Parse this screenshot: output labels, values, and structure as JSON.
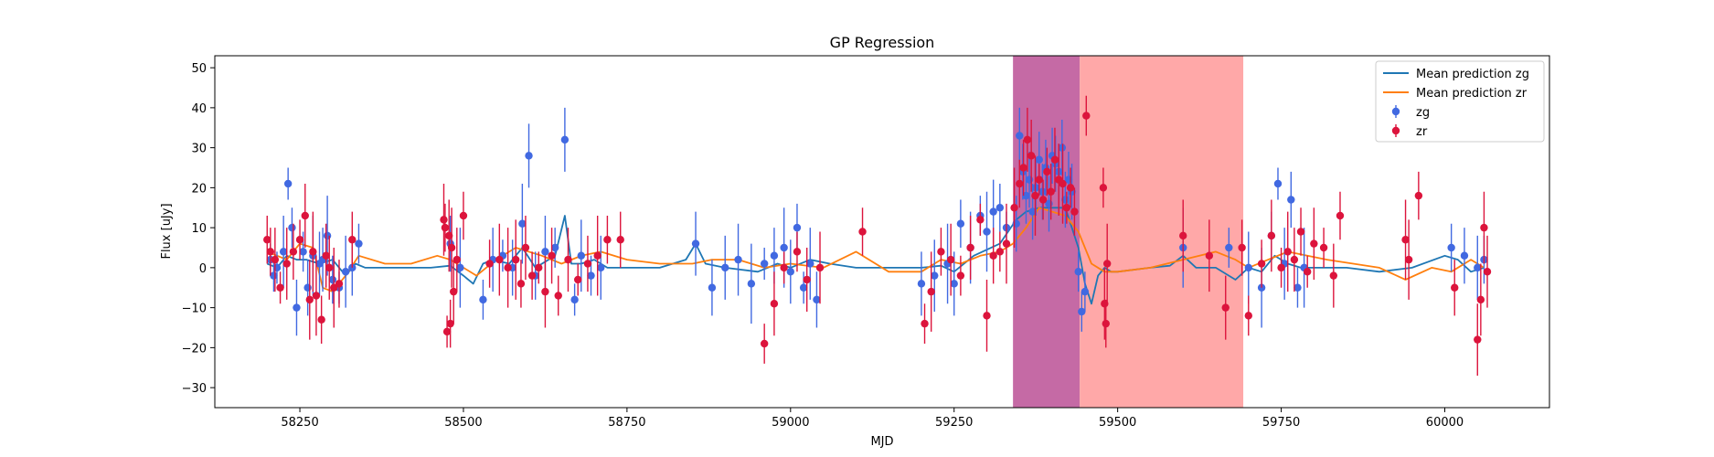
{
  "chart_data": {
    "type": "scatter",
    "title": "GP Regression",
    "xlabel": "MJD",
    "ylabel": "Flux [uJy]",
    "xlim": [
      58120,
      60160
    ],
    "ylim": [
      -35,
      53
    ],
    "x_ticks": [
      58250,
      58500,
      58750,
      59000,
      59250,
      59500,
      59750,
      60000
    ],
    "y_ticks": [
      -30,
      -20,
      -10,
      0,
      10,
      20,
      30,
      40,
      50
    ],
    "x_tick_labels": [
      "58250",
      "58500",
      "58750",
      "59000",
      "59250",
      "59500",
      "59750",
      "60000"
    ],
    "y_tick_labels": [
      "−30",
      "−20",
      "−10",
      "0",
      "10",
      "20",
      "30",
      "40",
      "50"
    ],
    "grid": false,
    "legend_position": "top-right",
    "shaded_regions": [
      {
        "x": [
          59340,
          59442
        ],
        "color": "#c56aa5"
      },
      {
        "x": [
          59442,
          59692
        ],
        "color": "#ffa8a8"
      }
    ],
    "legend": [
      {
        "label": "Mean prediction zg",
        "kind": "line",
        "color": "#1f77b4"
      },
      {
        "label": "Mean prediction zr",
        "kind": "line",
        "color": "#ff7f0e"
      },
      {
        "label": "zg",
        "kind": "errorbar",
        "color": "#4169e1"
      },
      {
        "label": "zr",
        "kind": "errorbar",
        "color": "#dc143c"
      }
    ],
    "series": [
      {
        "name": "Mean prediction zg",
        "kind": "line",
        "color": "#1f77b4",
        "x": [
          58200,
          58215,
          58230,
          58245,
          58260,
          58280,
          58300,
          58320,
          58335,
          58350,
          58400,
          58450,
          58480,
          58500,
          58515,
          58530,
          58545,
          58570,
          58590,
          58610,
          58640,
          58655,
          58665,
          58680,
          58700,
          58720,
          58750,
          58800,
          58840,
          58855,
          58870,
          58900,
          58950,
          58980,
          59000,
          59030,
          59060,
          59100,
          59150,
          59200,
          59230,
          59250,
          59280,
          59320,
          59345,
          59360,
          59380,
          59400,
          59420,
          59440,
          59450,
          59460,
          59470,
          59480,
          59490,
          59500,
          59550,
          59580,
          59600,
          59620,
          59650,
          59670,
          59680,
          59700,
          59720,
          59740,
          59760,
          59780,
          59800,
          59850,
          59900,
          59950,
          60000,
          60020,
          60040,
          60060
        ],
        "y": [
          1,
          0,
          3,
          2,
          2,
          1,
          2,
          -2,
          1,
          0,
          0,
          0,
          0.5,
          -2,
          -4,
          1,
          2,
          1,
          5,
          0,
          3,
          13,
          1,
          1,
          2,
          0,
          0,
          0,
          2,
          6,
          1,
          0,
          -1,
          1,
          0,
          2,
          1,
          0,
          0,
          0,
          0.5,
          -1,
          3,
          6,
          12,
          14,
          15,
          15,
          15,
          5,
          -4,
          -9,
          -2,
          0,
          -1,
          -1,
          0,
          0.5,
          3,
          0,
          0,
          -2,
          -3,
          0,
          -1,
          3,
          1,
          0,
          0,
          0,
          -1,
          0,
          3,
          2,
          -1,
          0
        ]
      },
      {
        "name": "Mean prediction zr",
        "kind": "line",
        "color": "#ff7f0e",
        "x": [
          58200,
          58230,
          58250,
          58270,
          58285,
          58300,
          58320,
          58340,
          58380,
          58420,
          58460,
          58480,
          58500,
          58520,
          58550,
          58580,
          58620,
          58650,
          58680,
          58710,
          58750,
          58800,
          58850,
          58880,
          58920,
          58960,
          59000,
          59050,
          59100,
          59150,
          59200,
          59230,
          59260,
          59290,
          59320,
          59340,
          59360,
          59380,
          59400,
          59420,
          59440,
          59460,
          59480,
          59500,
          59550,
          59600,
          59650,
          59680,
          59700,
          59730,
          59760,
          59790,
          59820,
          59860,
          59900,
          59940,
          59980,
          60010,
          60040,
          60060
        ],
        "y": [
          4,
          2,
          6,
          5,
          -5,
          -6,
          -2,
          3,
          1,
          1,
          3,
          2,
          0,
          -2,
          2,
          5,
          3,
          1,
          3,
          4,
          2,
          1,
          1,
          2,
          2,
          0,
          1,
          0,
          4,
          -1,
          -1,
          2,
          1,
          3,
          4,
          6,
          10,
          15,
          14,
          13,
          9,
          1,
          -1,
          -1,
          0,
          2,
          4,
          2,
          0,
          2,
          4,
          3,
          2,
          1,
          0,
          -3,
          0,
          -1,
          2,
          0
        ]
      },
      {
        "name": "zg",
        "kind": "errorbar",
        "color": "#4169e1",
        "x": [
          58205,
          58210,
          58215,
          58225,
          58232,
          58238,
          58245,
          58255,
          58262,
          58270,
          58280,
          58285,
          58292,
          58300,
          58310,
          58320,
          58330,
          58340,
          58480,
          58495,
          58530,
          58545,
          58560,
          58575,
          58590,
          58600,
          58610,
          58625,
          58640,
          58655,
          58670,
          58680,
          58695,
          58710,
          58855,
          58880,
          58900,
          58920,
          58940,
          58960,
          58975,
          58990,
          59000,
          59010,
          59020,
          59030,
          59040,
          59200,
          59220,
          59240,
          59250,
          59260,
          59275,
          59290,
          59300,
          59310,
          59320,
          59330,
          59345,
          59350,
          59355,
          59360,
          59365,
          59370,
          59375,
          59380,
          59385,
          59390,
          59395,
          59400,
          59405,
          59410,
          59415,
          59420,
          59425,
          59430,
          59440,
          59445,
          59450,
          59600,
          59670,
          59700,
          59720,
          59735,
          59745,
          59755,
          59765,
          59775,
          59785,
          60010,
          60030,
          60050,
          60060
        ],
        "y": [
          2,
          -2,
          0,
          4,
          21,
          10,
          -10,
          4,
          -5,
          3,
          1,
          2,
          8,
          -3,
          -5,
          -1,
          0,
          6,
          6,
          0,
          -8,
          2,
          3,
          0,
          11,
          28,
          -2,
          4,
          5,
          32,
          -8,
          3,
          -2,
          0,
          6,
          -5,
          0,
          2,
          -4,
          1,
          3,
          5,
          -1,
          10,
          -5,
          1,
          -8,
          -4,
          -2,
          1,
          -4,
          11,
          5,
          13,
          9,
          14,
          15,
          10,
          11,
          33,
          24,
          18,
          22,
          14,
          20,
          27,
          19,
          25,
          16,
          28,
          26,
          24,
          30,
          17,
          22,
          19,
          -1,
          -11,
          -6,
          5,
          5,
          0,
          -5,
          8,
          21,
          1,
          17,
          -5,
          0,
          5,
          3,
          0,
          2
        ]
      },
      {
        "name": "zr",
        "kind": "errorbar",
        "color": "#dc143c",
        "x": [
          58200,
          58205,
          58212,
          58220,
          58230,
          58240,
          58250,
          58258,
          58265,
          58270,
          58275,
          58283,
          58290,
          58295,
          58302,
          58310,
          58330,
          58470,
          58472,
          58475,
          58478,
          58480,
          58482,
          58485,
          58490,
          58500,
          58540,
          58555,
          58568,
          58580,
          58588,
          58595,
          58605,
          58615,
          58625,
          58635,
          58645,
          58660,
          58675,
          58690,
          58705,
          58720,
          58740,
          58960,
          58975,
          58990,
          59010,
          59025,
          59045,
          59110,
          59205,
          59215,
          59230,
          59245,
          59260,
          59275,
          59290,
          59300,
          59310,
          59320,
          59330,
          59342,
          59350,
          59356,
          59362,
          59368,
          59374,
          59380,
          59386,
          59392,
          59398,
          59404,
          59410,
          59416,
          59422,
          59428,
          59434,
          59452,
          59478,
          59480,
          59482,
          59484,
          59600,
          59640,
          59665,
          59690,
          59700,
          59720,
          59735,
          59750,
          59760,
          59770,
          59780,
          59790,
          59800,
          59815,
          59830,
          59840,
          59940,
          59945,
          59960,
          60015,
          60050,
          60055,
          60060,
          60065
        ],
        "y": [
          7,
          4,
          2,
          -5,
          1,
          4,
          7,
          13,
          -8,
          4,
          -7,
          -13,
          3,
          0,
          -5,
          -4,
          7,
          12,
          10,
          -16,
          8,
          -14,
          5,
          -6,
          2,
          13,
          1,
          2,
          0,
          2,
          -4,
          5,
          -2,
          0,
          -6,
          3,
          -7,
          2,
          -3,
          1,
          3,
          7,
          7,
          -19,
          -9,
          0,
          4,
          -3,
          0,
          9,
          -14,
          -6,
          4,
          2,
          -2,
          5,
          12,
          -12,
          3,
          4,
          6,
          15,
          21,
          25,
          32,
          28,
          18,
          22,
          17,
          24,
          19,
          27,
          22,
          21,
          15,
          20,
          14,
          38,
          20,
          -9,
          -14,
          1,
          8,
          3,
          -10,
          5,
          -12,
          1,
          8,
          0,
          4,
          2,
          9,
          -1,
          6,
          5,
          -2,
          13,
          7,
          2,
          18,
          -5,
          -18,
          -8,
          10,
          -1
        ]
      }
    ]
  }
}
